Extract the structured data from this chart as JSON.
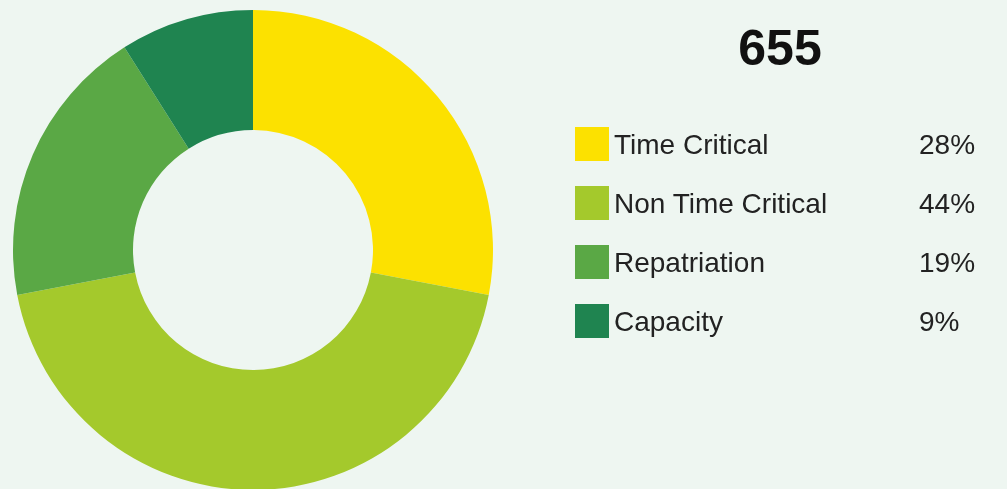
{
  "chart_data": {
    "type": "donut",
    "title": "655",
    "categories": [
      "Time Critical",
      "Non Time Critical",
      "Repatriation",
      "Capacity"
    ],
    "values": [
      28,
      44,
      19,
      9
    ],
    "colors": [
      "#fce100",
      "#a4c92c",
      "#5aa845",
      "#1f8450"
    ],
    "value_labels": [
      "28%",
      "44%",
      "19%",
      "9%"
    ],
    "legend": "right"
  }
}
